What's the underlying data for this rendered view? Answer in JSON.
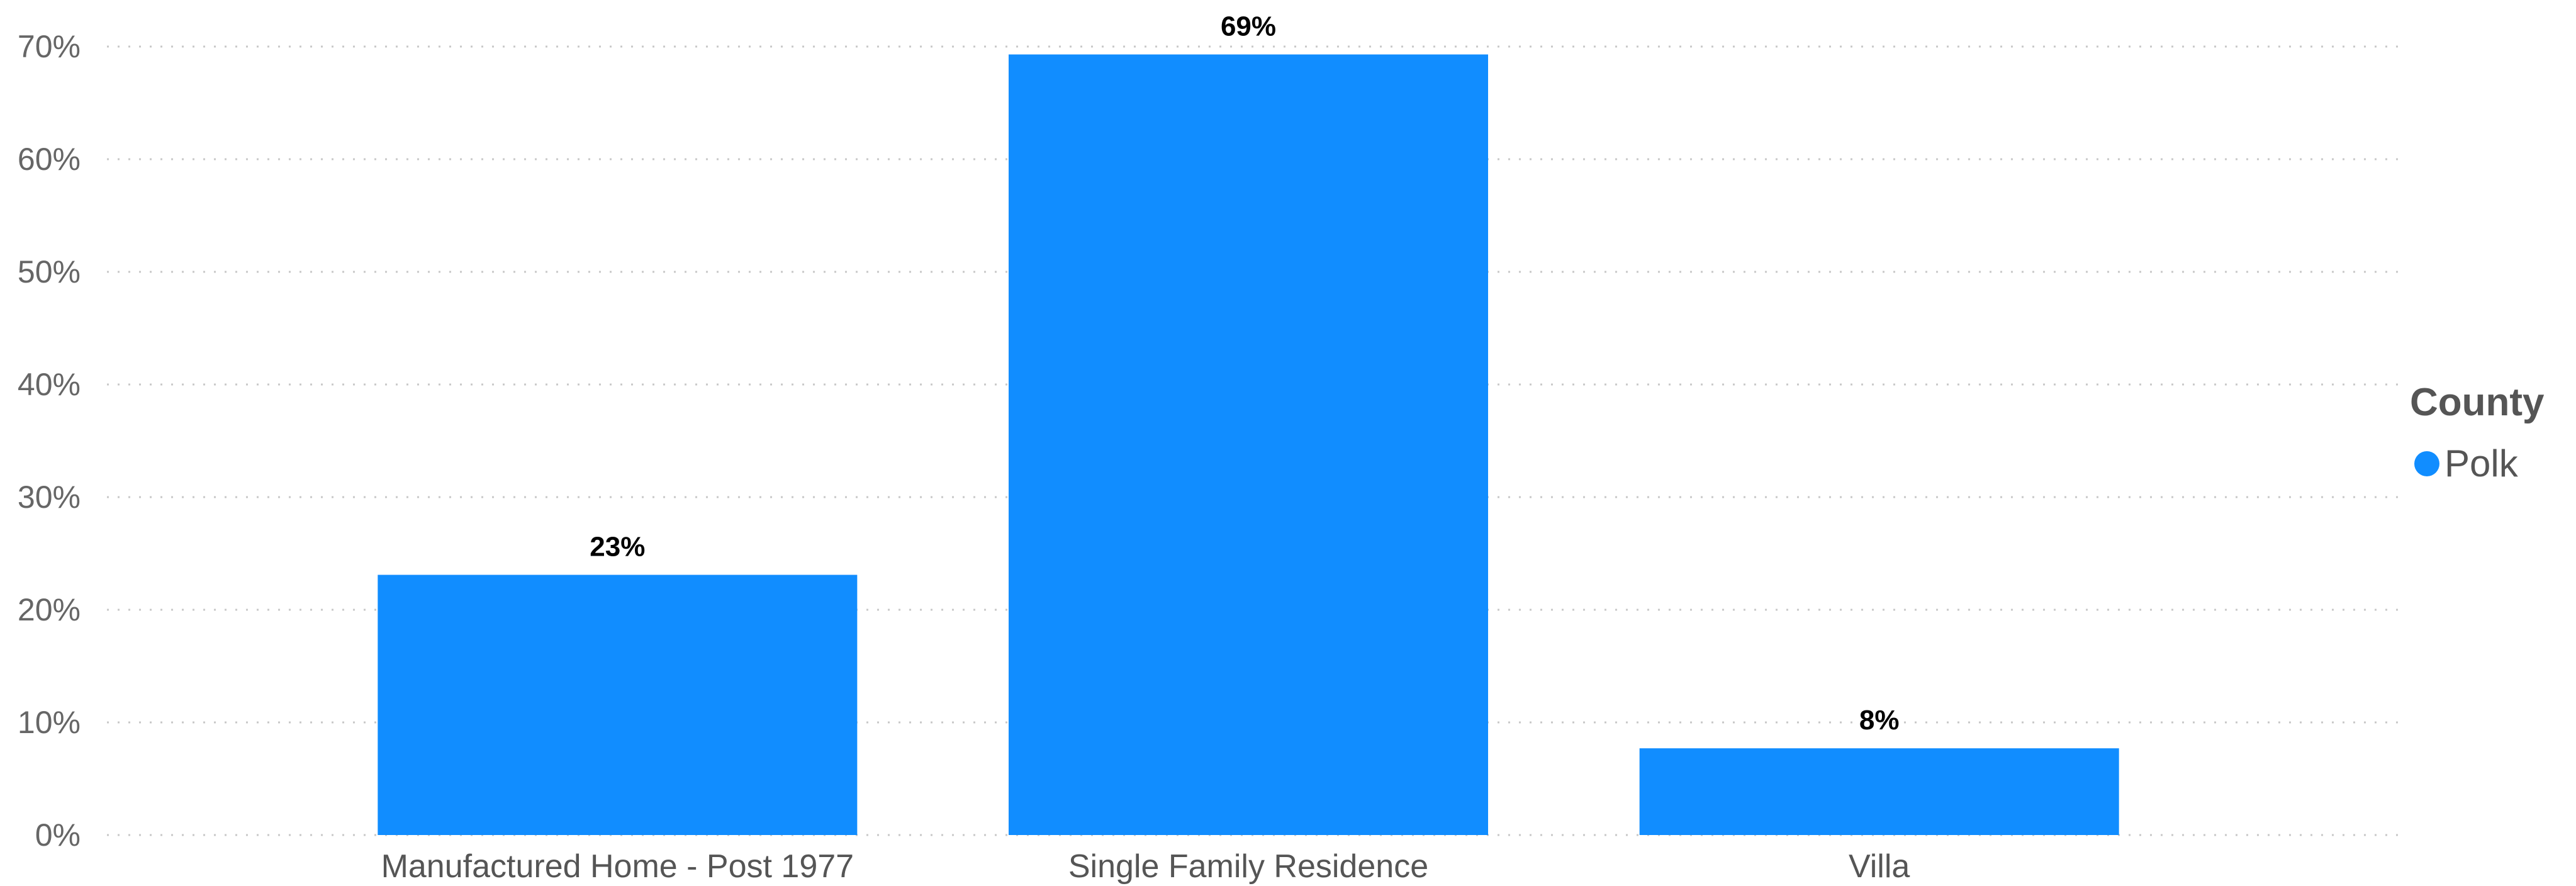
{
  "chart_data": {
    "type": "bar",
    "categories": [
      "Manufactured Home - Post 1977",
      "Single Family Residence",
      "Villa"
    ],
    "series": [
      {
        "name": "Polk",
        "values": [
          23.1,
          69.3,
          7.7
        ],
        "data_labels": [
          "23%",
          "69%",
          "8%"
        ]
      }
    ],
    "ylim": [
      0,
      70
    ],
    "yticks": [
      0,
      10,
      20,
      30,
      40,
      50,
      60,
      70
    ],
    "ytick_labels": [
      "0%",
      "10%",
      "20%",
      "30%",
      "40%",
      "50%",
      "60%",
      "70%"
    ],
    "grid": true,
    "legend": {
      "title": "County",
      "placement": "right"
    },
    "colors": {
      "bar": "#118DFF",
      "grid": "#C8C8C8",
      "text": "#666666"
    }
  }
}
